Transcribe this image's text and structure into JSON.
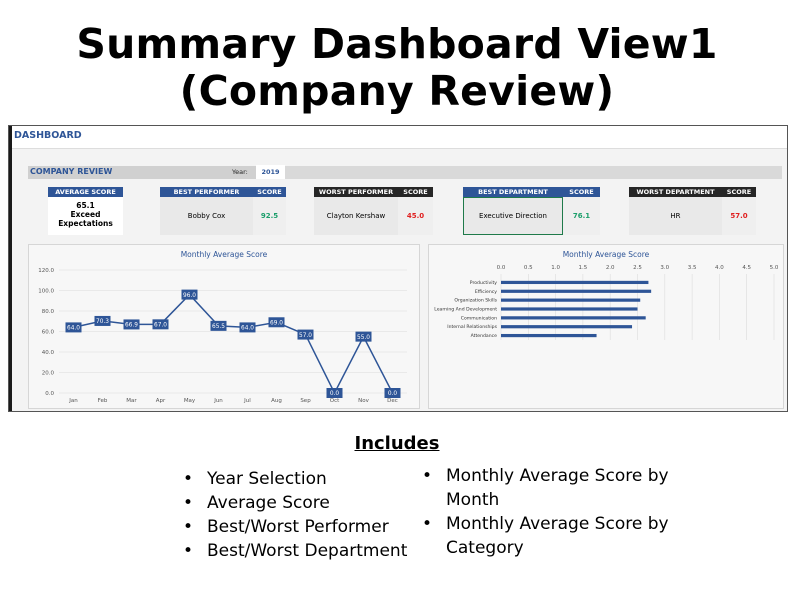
{
  "slide": {
    "title_line1": "Summary Dashboard View1",
    "title_line2": "(Company Review)",
    "includes_heading": "Includes",
    "bullets_left": [
      "Year Selection",
      "Average Score",
      "Best/Worst Performer",
      "Best/Worst Department"
    ],
    "bullets_right": [
      "Monthly Average Score by Month",
      "Monthly Average Score by Category"
    ]
  },
  "dashboard": {
    "title": "DASHBOARD",
    "section_title": "COMPANY REVIEW",
    "year_label": "Year:",
    "year_value": "2019",
    "average_score": {
      "header": "AVERAGE SCORE",
      "value": "65.1",
      "line2": "Exceed",
      "line3": "Expectations"
    },
    "best_performer": {
      "header": "BEST PERFORMER",
      "score_header": "SCORE",
      "name": "Bobby Cox",
      "score": "92.5"
    },
    "worst_performer": {
      "header": "WORST PERFORMER",
      "score_header": "SCORE",
      "name": "Clayton Kershaw",
      "score": "45.0"
    },
    "best_department": {
      "header": "BEST DEPARTMENT",
      "score_header": "SCORE",
      "name": "Executive Direction",
      "score": "76.1"
    },
    "worst_department": {
      "header": "WORST DEPARTMENT",
      "score_header": "SCORE",
      "name": "HR",
      "score": "57.0"
    },
    "colors": {
      "accent": "#2E5597",
      "dark": "#262626",
      "good": "#1a9e6a",
      "bad": "#e02020"
    }
  },
  "chart_data": [
    {
      "type": "line",
      "title": "Monthly Average Score",
      "categories": [
        "Jan",
        "Feb",
        "Mar",
        "Apr",
        "May",
        "Jun",
        "Jul",
        "Aug",
        "Sep",
        "Oct",
        "Nov",
        "Dec"
      ],
      "values": [
        64.0,
        70.3,
        66.9,
        67.0,
        96.0,
        65.5,
        64.0,
        69.0,
        57.0,
        0.0,
        55.0,
        0.0
      ],
      "data_labels": [
        "64.0",
        "70.3",
        "66.9",
        "67.0",
        "96.0",
        "65.5",
        "64.0",
        "69.0",
        "57.0",
        "0.0",
        "55.0",
        "0.0"
      ],
      "ylim": [
        0,
        120
      ],
      "yticks": [
        "0.0",
        "20.0",
        "40.0",
        "60.0",
        "80.0",
        "100.0",
        "120.0"
      ],
      "grid": true,
      "color": "#2E5597"
    },
    {
      "type": "bar",
      "orientation": "horizontal",
      "title": "Monthly Average Score",
      "categories": [
        "Productivity",
        "Efficiency",
        "Organization Skills",
        "Learning And Development",
        "Communication",
        "Internal Relationships",
        "Attendance"
      ],
      "values": [
        2.7,
        2.75,
        2.55,
        2.5,
        2.65,
        2.4,
        1.75
      ],
      "xlim": [
        0,
        5
      ],
      "xticks": [
        "0.0",
        "0.5",
        "1.0",
        "1.5",
        "2.0",
        "2.5",
        "3.0",
        "3.5",
        "4.0",
        "4.5",
        "5.0"
      ],
      "grid": true,
      "color": "#2E5597"
    }
  ]
}
